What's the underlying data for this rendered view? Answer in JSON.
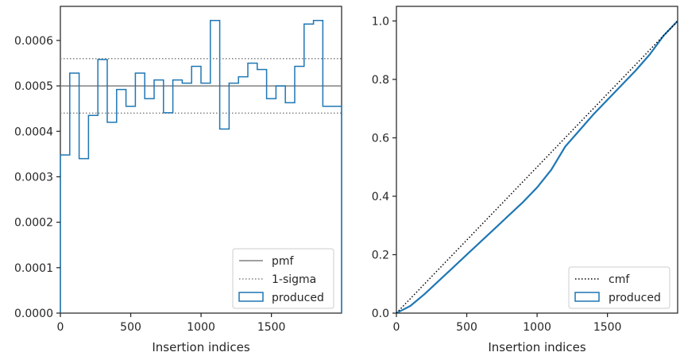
{
  "colors": {
    "produced": "#1f77b4",
    "pmf": "#808080",
    "sigma": "#808080",
    "cmf": "#000000",
    "axes": "#262626"
  },
  "chart_data": [
    {
      "type": "histogram",
      "xlabel": "Insertion indices",
      "ylabel": "",
      "xlim": [
        0,
        1999
      ],
      "ylim": [
        0,
        0.000675
      ],
      "x_ticks": [
        0,
        500,
        1000,
        1500
      ],
      "y_ticks": [
        0.0,
        0.0001,
        0.0002,
        0.0003,
        0.0004,
        0.0005,
        0.0006
      ],
      "y_tick_labels": [
        "0.0000",
        "0.0001",
        "0.0002",
        "0.0003",
        "0.0004",
        "0.0005",
        "0.0006"
      ],
      "pmf": 0.0005,
      "sigma_band": [
        0.00044,
        0.00056
      ],
      "legend_location": "lower right",
      "legend": [
        "pmf",
        "1-sigma",
        "produced"
      ],
      "bin_width": 66.63,
      "produced": [
        0.000348,
        0.000528,
        0.00034,
        0.000435,
        0.000558,
        0.00042,
        0.000492,
        0.000455,
        0.000528,
        0.000472,
        0.000513,
        0.000441,
        0.000513,
        0.000506,
        0.000543,
        0.000506,
        0.000644,
        0.000405,
        0.000506,
        0.00052,
        0.00055,
        0.000536,
        0.000472,
        0.0005,
        0.000463,
        0.000543,
        0.000636,
        0.000644,
        0.000455,
        0.000455
      ]
    },
    {
      "type": "line",
      "xlabel": "Insertion indices",
      "ylabel": "",
      "xlim": [
        0,
        1999
      ],
      "ylim": [
        0,
        1.05
      ],
      "x_ticks": [
        0,
        500,
        1000,
        1500
      ],
      "y_ticks": [
        0.0,
        0.2,
        0.4,
        0.6,
        0.8,
        1.0
      ],
      "y_tick_labels": [
        "0.0",
        "0.2",
        "0.4",
        "0.6",
        "0.8",
        "1.0"
      ],
      "legend_location": "lower right",
      "legend": [
        "cmf",
        "produced"
      ],
      "cmf": {
        "x": [
          0,
          1999
        ],
        "y": [
          0,
          1.0
        ]
      },
      "produced": {
        "x": [
          0,
          100,
          200,
          300,
          400,
          500,
          600,
          700,
          800,
          900,
          1000,
          1100,
          1200,
          1300,
          1400,
          1500,
          1600,
          1700,
          1800,
          1900,
          1999
        ],
        "y": [
          0,
          0.025,
          0.065,
          0.11,
          0.155,
          0.2,
          0.245,
          0.29,
          0.335,
          0.38,
          0.43,
          0.49,
          0.57,
          0.625,
          0.68,
          0.73,
          0.78,
          0.83,
          0.885,
          0.95,
          1.0
        ]
      }
    }
  ]
}
